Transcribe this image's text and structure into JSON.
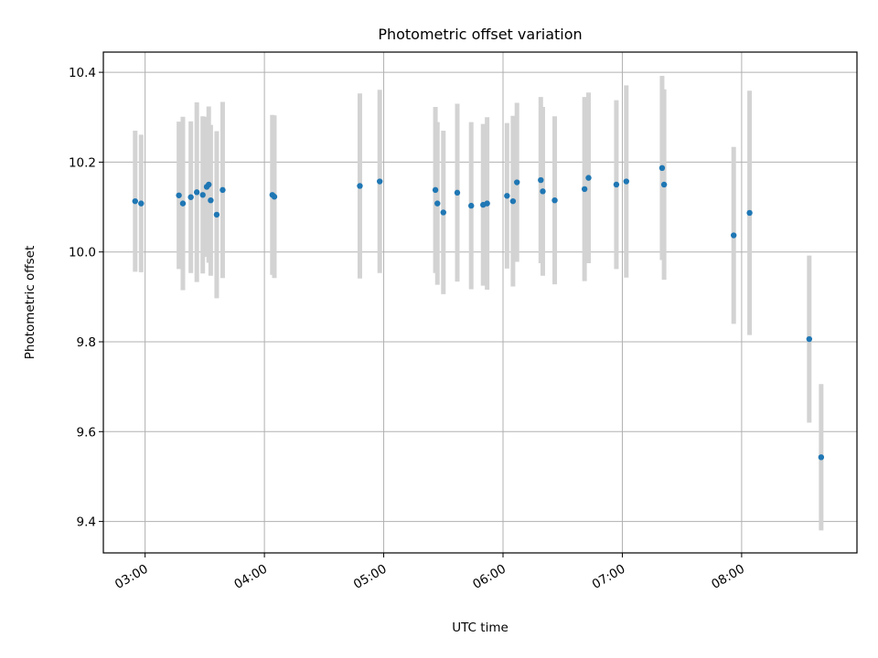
{
  "chart_data": {
    "type": "scatter",
    "title": "Photometric offset variation",
    "xlabel": "UTC time",
    "ylabel": "Photometric offset",
    "x_ticks": [
      "03:00",
      "04:00",
      "05:00",
      "06:00",
      "07:00",
      "08:00"
    ],
    "y_ticks": [
      "9.4",
      "9.6",
      "9.8",
      "10.0",
      "10.2",
      "10.4"
    ],
    "xlim": [
      "02:39",
      "08:58"
    ],
    "ylim": [
      9.33,
      10.445
    ],
    "grid": true,
    "legend": "none",
    "colors": {
      "points": "#1f77b4",
      "errorbars": "#d3d3d3",
      "grid": "#b0b0b0"
    },
    "series": [
      {
        "points": [
          {
            "x": "02:55",
            "y": 10.113,
            "yerr": 0.157
          },
          {
            "x": "02:58",
            "y": 10.108,
            "yerr": 0.153
          },
          {
            "x": "03:17",
            "y": 10.126,
            "yerr": 0.164
          },
          {
            "x": "03:19",
            "y": 10.108,
            "yerr": 0.193
          },
          {
            "x": "03:23",
            "y": 10.122,
            "yerr": 0.169
          },
          {
            "x": "03:26",
            "y": 10.133,
            "yerr": 0.2
          },
          {
            "x": "03:29",
            "y": 10.127,
            "yerr": 0.175
          },
          {
            "x": "03:31",
            "y": 10.145,
            "yerr": 0.156
          },
          {
            "x": "03:32",
            "y": 10.15,
            "yerr": 0.174
          },
          {
            "x": "03:33",
            "y": 10.115,
            "yerr": 0.168
          },
          {
            "x": "03:36",
            "y": 10.083,
            "yerr": 0.186
          },
          {
            "x": "03:39",
            "y": 10.138,
            "yerr": 0.196
          },
          {
            "x": "04:04",
            "y": 10.127,
            "yerr": 0.178
          },
          {
            "x": "04:05",
            "y": 10.123,
            "yerr": 0.181
          },
          {
            "x": "04:48",
            "y": 10.147,
            "yerr": 0.206
          },
          {
            "x": "04:58",
            "y": 10.157,
            "yerr": 0.204
          },
          {
            "x": "05:26",
            "y": 10.138,
            "yerr": 0.185
          },
          {
            "x": "05:27",
            "y": 10.108,
            "yerr": 0.181
          },
          {
            "x": "05:30",
            "y": 10.088,
            "yerr": 0.182
          },
          {
            "x": "05:37",
            "y": 10.132,
            "yerr": 0.198
          },
          {
            "x": "05:44",
            "y": 10.103,
            "yerr": 0.186
          },
          {
            "x": "05:50",
            "y": 10.105,
            "yerr": 0.18
          },
          {
            "x": "05:52",
            "y": 10.108,
            "yerr": 0.192
          },
          {
            "x": "06:02",
            "y": 10.125,
            "yerr": 0.162
          },
          {
            "x": "06:05",
            "y": 10.113,
            "yerr": 0.19
          },
          {
            "x": "06:07",
            "y": 10.155,
            "yerr": 0.177
          },
          {
            "x": "06:19",
            "y": 10.16,
            "yerr": 0.185
          },
          {
            "x": "06:20",
            "y": 10.135,
            "yerr": 0.188
          },
          {
            "x": "06:26",
            "y": 10.115,
            "yerr": 0.187
          },
          {
            "x": "06:41",
            "y": 10.14,
            "yerr": 0.205
          },
          {
            "x": "06:43",
            "y": 10.165,
            "yerr": 0.19
          },
          {
            "x": "06:57",
            "y": 10.15,
            "yerr": 0.188
          },
          {
            "x": "07:02",
            "y": 10.157,
            "yerr": 0.214
          },
          {
            "x": "07:20",
            "y": 10.187,
            "yerr": 0.205
          },
          {
            "x": "07:21",
            "y": 10.15,
            "yerr": 0.212
          },
          {
            "x": "07:56",
            "y": 10.037,
            "yerr": 0.197
          },
          {
            "x": "08:04",
            "y": 10.087,
            "yerr": 0.272
          },
          {
            "x": "08:34",
            "y": 9.806,
            "yerr": 0.186
          },
          {
            "x": "08:40",
            "y": 9.543,
            "yerr": 0.163
          }
        ]
      }
    ]
  }
}
